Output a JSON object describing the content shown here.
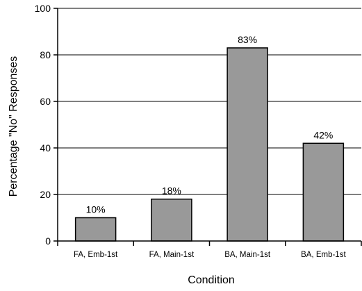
{
  "chart_data": {
    "type": "bar",
    "categories": [
      "FA, Emb-1st",
      "FA, Main-1st",
      "BA, Main-1st",
      "BA, Emb-1st"
    ],
    "values": [
      10,
      18,
      83,
      42
    ],
    "data_labels": [
      "10%",
      "18%",
      "83%",
      "42%"
    ],
    "xlabel": "Condition",
    "ylabel": "Percentage \"No\" Responses",
    "ylim": [
      0,
      100
    ],
    "yticks": [
      0,
      20,
      40,
      60,
      80,
      100
    ],
    "ytick_labels": [
      "0",
      "20",
      "40",
      "60",
      "80",
      "100"
    ],
    "grid": "horizontal",
    "legend": "none",
    "bar_color": "#999999",
    "bar_edge_color": "#000000"
  }
}
